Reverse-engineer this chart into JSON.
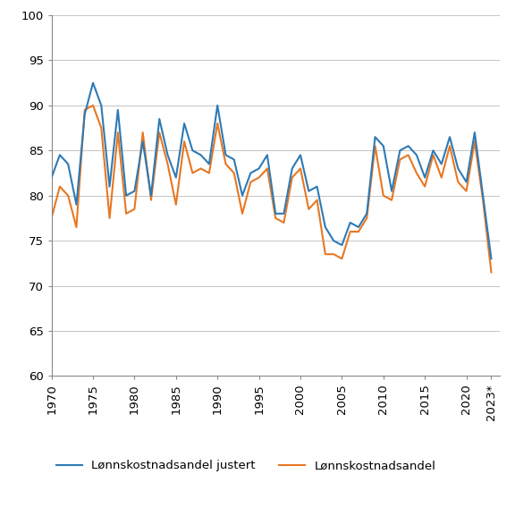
{
  "years": [
    1970,
    1971,
    1972,
    1973,
    1974,
    1975,
    1976,
    1977,
    1978,
    1979,
    1980,
    1981,
    1982,
    1983,
    1984,
    1985,
    1986,
    1987,
    1988,
    1989,
    1990,
    1991,
    1992,
    1993,
    1994,
    1995,
    1996,
    1997,
    1998,
    1999,
    2000,
    2001,
    2002,
    2003,
    2004,
    2005,
    2006,
    2007,
    2008,
    2009,
    2010,
    2011,
    2012,
    2013,
    2014,
    2015,
    2016,
    2017,
    2018,
    2019,
    2020,
    2021,
    2022,
    2023
  ],
  "justert": [
    82.0,
    84.5,
    83.5,
    79.0,
    89.0,
    92.5,
    90.0,
    81.0,
    89.5,
    80.0,
    80.5,
    86.0,
    80.0,
    88.5,
    84.5,
    82.0,
    88.0,
    85.0,
    84.5,
    83.5,
    90.0,
    84.5,
    84.0,
    80.0,
    82.5,
    83.0,
    84.5,
    78.0,
    78.0,
    83.0,
    84.5,
    80.5,
    81.0,
    76.5,
    75.0,
    74.5,
    77.0,
    76.5,
    78.0,
    86.5,
    85.5,
    80.5,
    85.0,
    85.5,
    84.5,
    82.0,
    85.0,
    83.5,
    86.5,
    83.0,
    81.5,
    87.0,
    80.0,
    73.0
  ],
  "andel": [
    77.5,
    81.0,
    80.0,
    76.5,
    89.5,
    90.0,
    87.5,
    77.5,
    87.0,
    78.0,
    78.5,
    87.0,
    79.5,
    87.0,
    83.5,
    79.0,
    86.0,
    82.5,
    83.0,
    82.5,
    88.0,
    83.5,
    82.5,
    78.0,
    81.5,
    82.0,
    83.0,
    77.5,
    77.0,
    82.0,
    83.0,
    78.5,
    79.5,
    73.5,
    73.5,
    73.0,
    76.0,
    76.0,
    77.5,
    85.5,
    80.0,
    79.5,
    84.0,
    84.5,
    82.5,
    81.0,
    84.5,
    82.0,
    85.5,
    81.5,
    80.5,
    86.0,
    79.5,
    71.5
  ],
  "color_justert": "#2e7ab5",
  "color_andel": "#e87722",
  "ylabel_values": [
    60,
    65,
    70,
    75,
    80,
    85,
    90,
    95,
    100
  ],
  "xtick_labels": [
    "1970",
    "1975",
    "1980",
    "1985",
    "1990",
    "1995",
    "2000",
    "2005",
    "2010",
    "2015",
    "2020",
    "2023*"
  ],
  "xtick_positions": [
    1970,
    1975,
    1980,
    1985,
    1990,
    1995,
    2000,
    2005,
    2010,
    2015,
    2020,
    2023
  ],
  "ylim": [
    60,
    100
  ],
  "xlim_left": 1970,
  "xlim_right": 2024.0,
  "legend_justert": "Lønnskostnadsandel justert",
  "legend_andel": "Lønnskostnadsandel",
  "line_width": 1.5,
  "grid_color": "#bbbbbb",
  "spine_color": "#888888",
  "tick_fontsize": 9.5,
  "legend_fontsize": 9.5
}
